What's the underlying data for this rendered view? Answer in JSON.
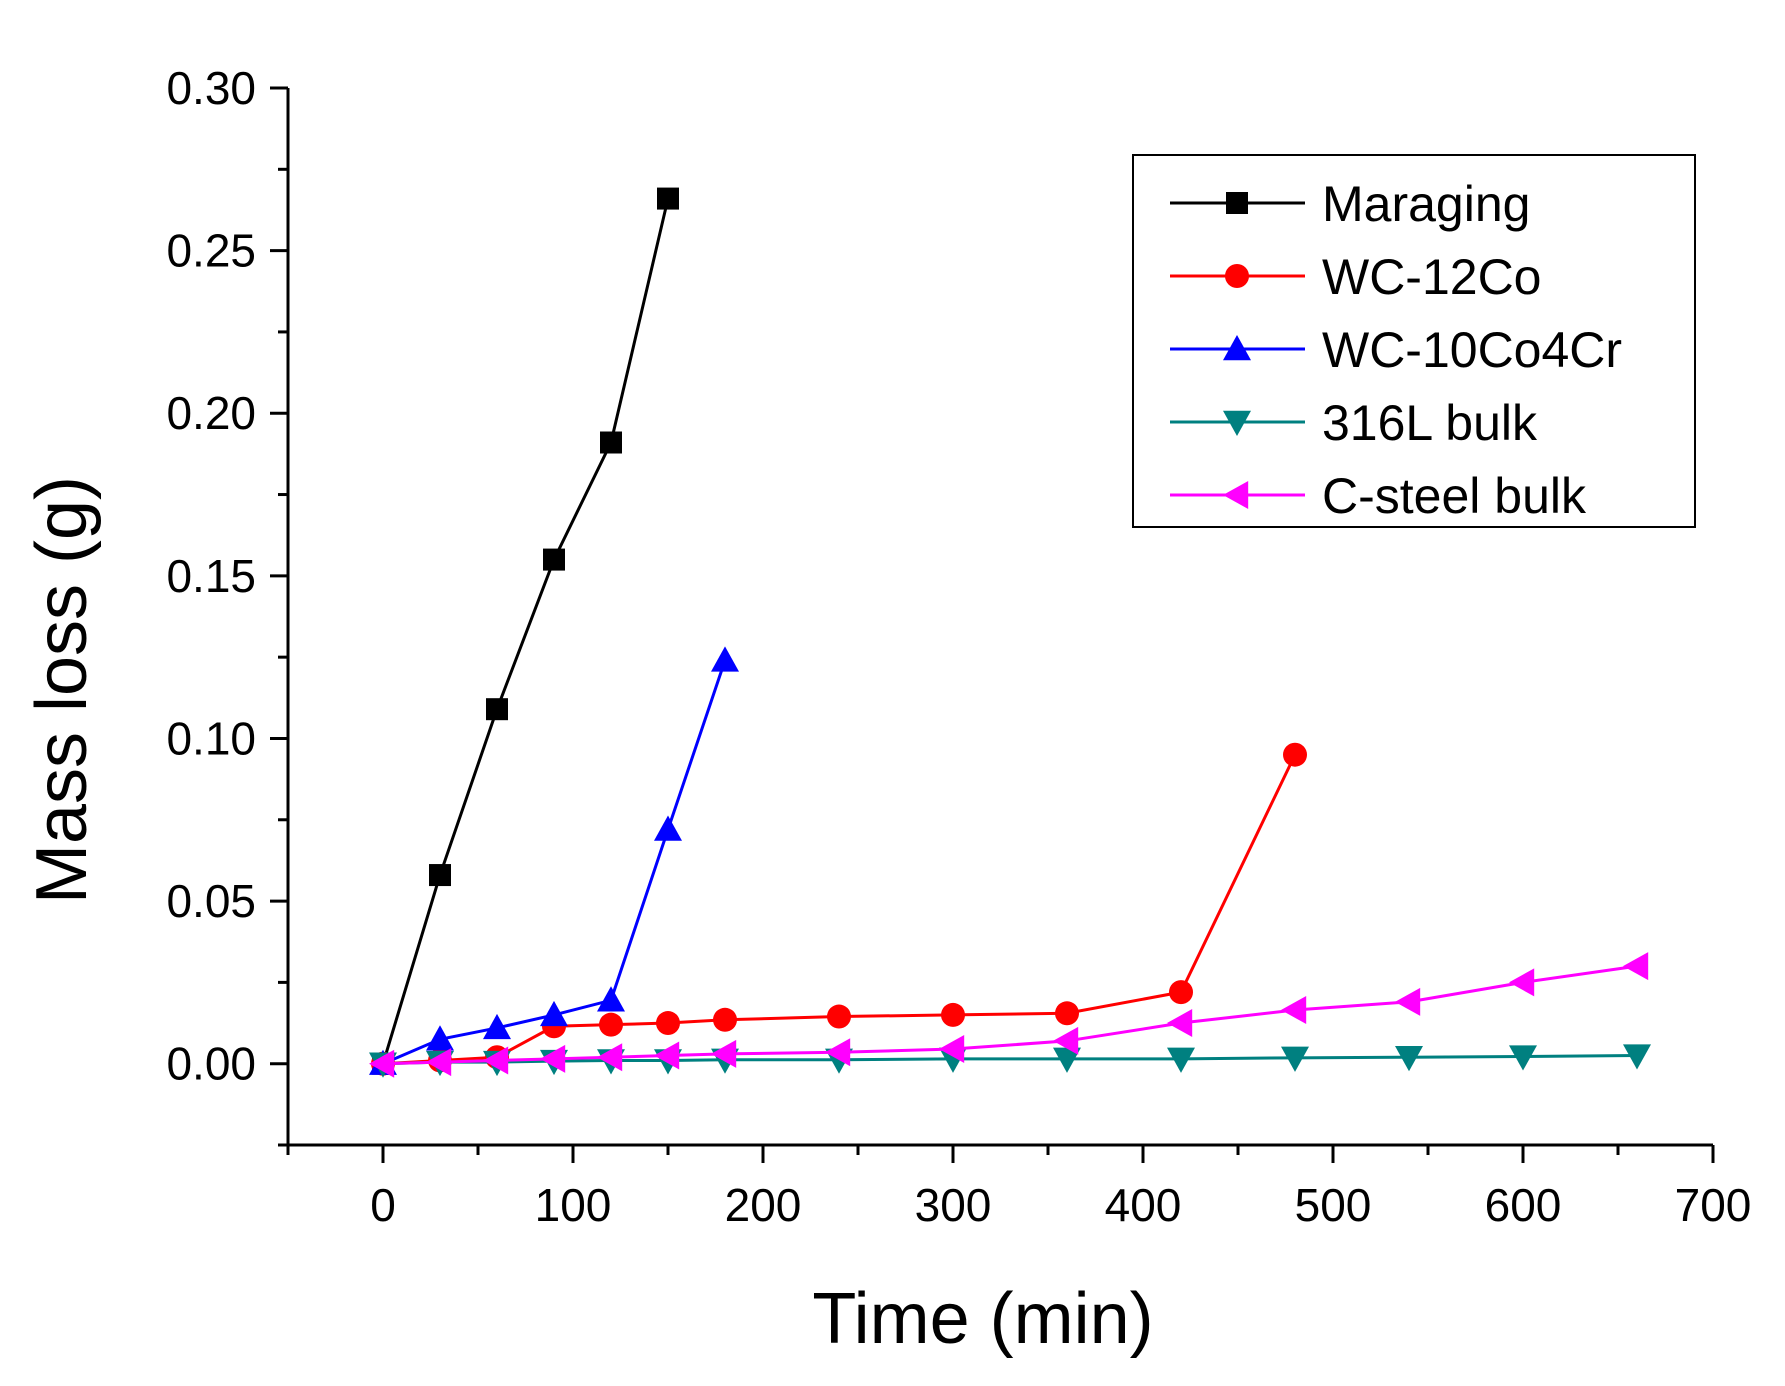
{
  "chart_data": {
    "type": "line",
    "title": "",
    "xlabel": "Time (min)",
    "ylabel": "Mass loss (g)",
    "xlim": [
      -50,
      700
    ],
    "ylim": [
      -0.025,
      0.3
    ],
    "xticks": [
      0,
      100,
      200,
      300,
      400,
      500,
      600,
      700
    ],
    "xtick_labels": [
      "0",
      "100",
      "200",
      "300",
      "400",
      "500",
      "600",
      "700"
    ],
    "yticks": [
      0.0,
      0.05,
      0.1,
      0.15,
      0.2,
      0.25,
      0.3
    ],
    "ytick_labels": [
      "0.00",
      "0.05",
      "0.10",
      "0.15",
      "0.20",
      "0.25",
      "0.30"
    ],
    "grid": false,
    "legend_position": "top-right",
    "series": [
      {
        "name": "Maraging",
        "color": "#000000",
        "marker": "square",
        "x": [
          0,
          30,
          60,
          90,
          120,
          150
        ],
        "y": [
          0.0,
          0.058,
          0.109,
          0.155,
          0.191,
          0.266
        ]
      },
      {
        "name": "WC-12Co",
        "color": "#ff0000",
        "marker": "circle",
        "x": [
          0,
          30,
          60,
          90,
          120,
          150,
          180,
          240,
          300,
          360,
          420,
          480
        ],
        "y": [
          0.0,
          0.001,
          0.002,
          0.0115,
          0.012,
          0.0125,
          0.0135,
          0.0145,
          0.015,
          0.0155,
          0.022,
          0.095
        ]
      },
      {
        "name": "WC-10Co4Cr",
        "color": "#0000ff",
        "marker": "triangle-up",
        "x": [
          0,
          30,
          60,
          90,
          120,
          150,
          180
        ],
        "y": [
          0.0,
          0.0075,
          0.011,
          0.015,
          0.0195,
          0.072,
          0.124
        ]
      },
      {
        "name": "316L bulk",
        "color": "#008080",
        "marker": "triangle-down",
        "x": [
          0,
          30,
          60,
          90,
          120,
          150,
          180,
          240,
          300,
          360,
          420,
          480,
          540,
          600,
          660
        ],
        "y": [
          0.0,
          0.0005,
          0.0005,
          0.0008,
          0.001,
          0.001,
          0.0012,
          0.0012,
          0.0015,
          0.0015,
          0.0015,
          0.0018,
          0.002,
          0.0022,
          0.0025
        ]
      },
      {
        "name": "C-steel bulk",
        "color": "#ff00ff",
        "marker": "triangle-left",
        "x": [
          0,
          30,
          60,
          90,
          120,
          150,
          180,
          240,
          300,
          360,
          420,
          480,
          540,
          600,
          660
        ],
        "y": [
          0.0,
          0.0005,
          0.001,
          0.0015,
          0.002,
          0.0025,
          0.003,
          0.0035,
          0.0045,
          0.007,
          0.0125,
          0.0165,
          0.019,
          0.025,
          0.03
        ]
      }
    ]
  }
}
